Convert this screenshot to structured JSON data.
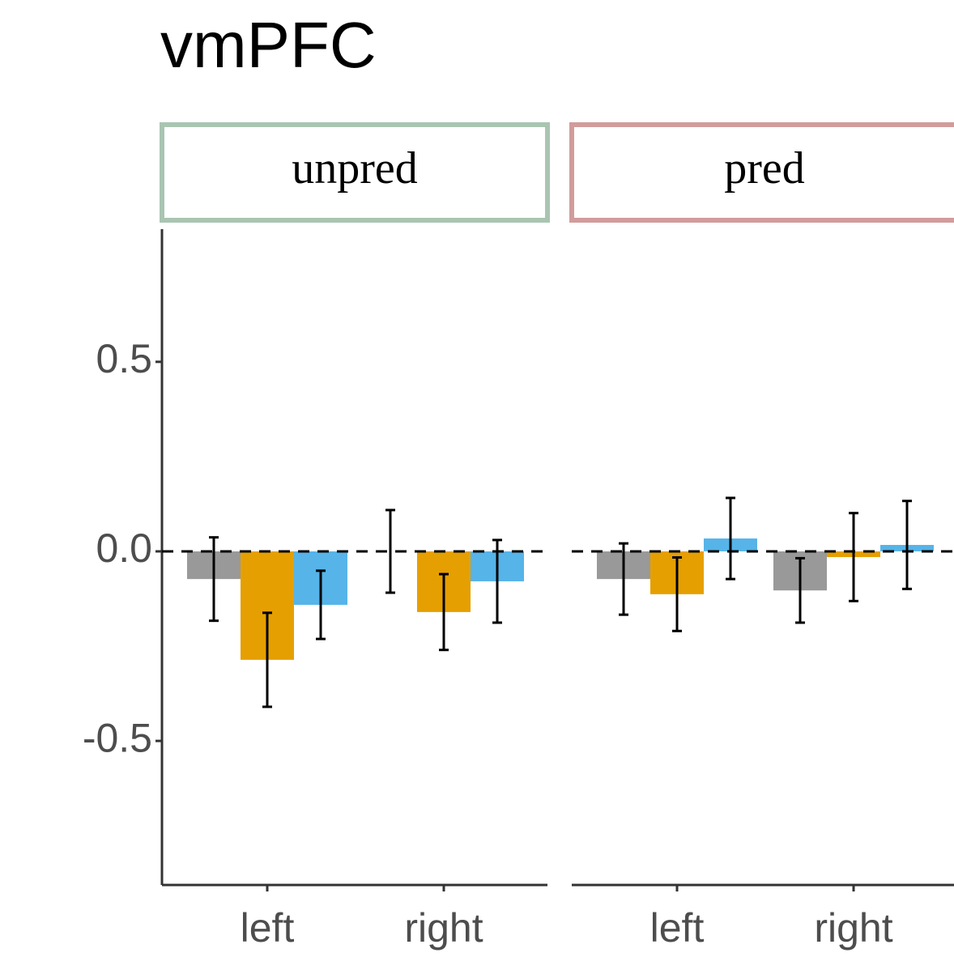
{
  "chart_data": {
    "type": "bar",
    "title": "vmPFC",
    "ylim": [
      -0.88,
      0.85
    ],
    "yticks": [
      0.5,
      {
        "value": 0,
        "label": "0.0"
      },
      -0.5
    ],
    "hline": 0,
    "facets": [
      {
        "label": "unpred",
        "strip_color": "#a9c5b2",
        "categories": [
          "left",
          "right"
        ],
        "series": [
          {
            "color": "#999999",
            "values": [
              -0.073,
              0.0
            ],
            "errors": [
              0.11,
              0.109
            ]
          },
          {
            "color": "#e69f00",
            "values": [
              -0.286,
              -0.16
            ],
            "errors": [
              0.124,
              0.1
            ]
          },
          {
            "color": "#56b4e9",
            "values": [
              -0.141,
              -0.079
            ],
            "errors": [
              0.09,
              0.109
            ]
          }
        ]
      },
      {
        "label": "pred",
        "strip_color": "#d19c9c",
        "categories": [
          "left",
          "right"
        ],
        "series": [
          {
            "color": "#999999",
            "values": [
              -0.073,
              -0.103
            ],
            "errors": [
              0.094,
              0.085
            ]
          },
          {
            "color": "#e69f00",
            "values": [
              -0.113,
              -0.015
            ],
            "errors": [
              0.097,
              0.116
            ]
          },
          {
            "color": "#56b4e9",
            "values": [
              0.034,
              0.017
            ],
            "errors": [
              0.107,
              0.116
            ]
          }
        ]
      }
    ]
  }
}
